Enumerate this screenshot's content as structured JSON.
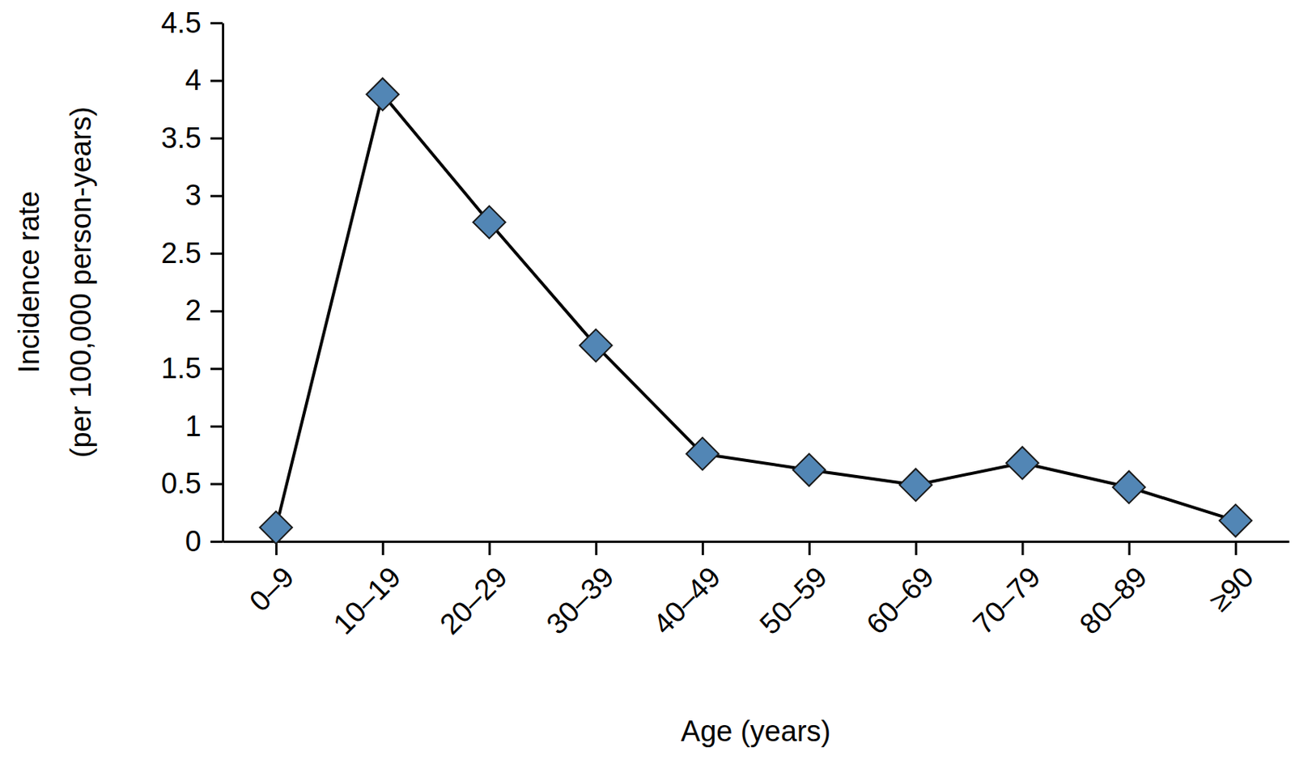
{
  "chart_data": {
    "type": "line",
    "xlabel": "Age (years)",
    "ylabel": [
      "Incidence rate",
      "(per 100,000 person-years)"
    ],
    "categories": [
      "0–9",
      "10–19",
      "20–29",
      "30–39",
      "40–49",
      "50–59",
      "60–69",
      "70–79",
      "80–89",
      "≥90"
    ],
    "values": [
      0.12,
      3.88,
      2.77,
      1.7,
      0.76,
      0.62,
      0.49,
      0.68,
      0.47,
      0.18
    ],
    "color": "#5286b5",
    "marker": "diamond",
    "ylim": [
      0,
      4.5
    ],
    "yticks": [
      0,
      0.5,
      1,
      1.5,
      2,
      2.5,
      3,
      3.5,
      4,
      4.5
    ],
    "grid": false
  }
}
